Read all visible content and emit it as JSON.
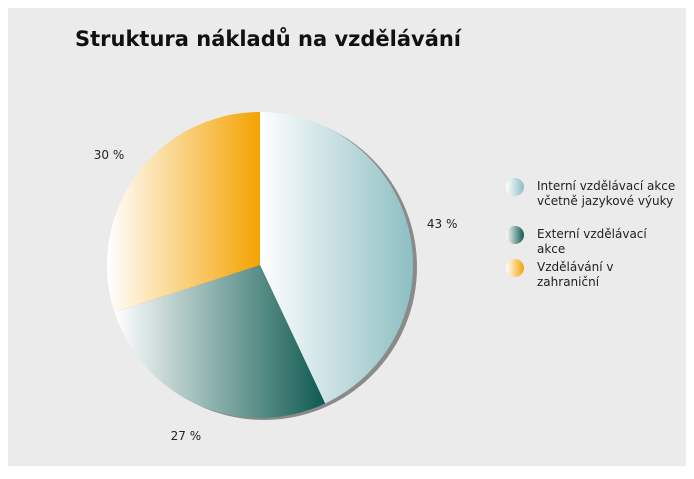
{
  "chart_data": {
    "type": "pie",
    "title": "Struktura nákladů na vzdělávání",
    "categories": [
      "Interní vzdělávací akce včetně jazykové výuky",
      "Externí vzdělávací akce",
      "Vzdělávání v zahraniční"
    ],
    "values": [
      43,
      27,
      30
    ],
    "value_labels": [
      "43 %",
      "27 %",
      "30 %"
    ],
    "colors": [
      "#8dbfc3",
      "#0e5a50",
      "#f4a300"
    ]
  }
}
